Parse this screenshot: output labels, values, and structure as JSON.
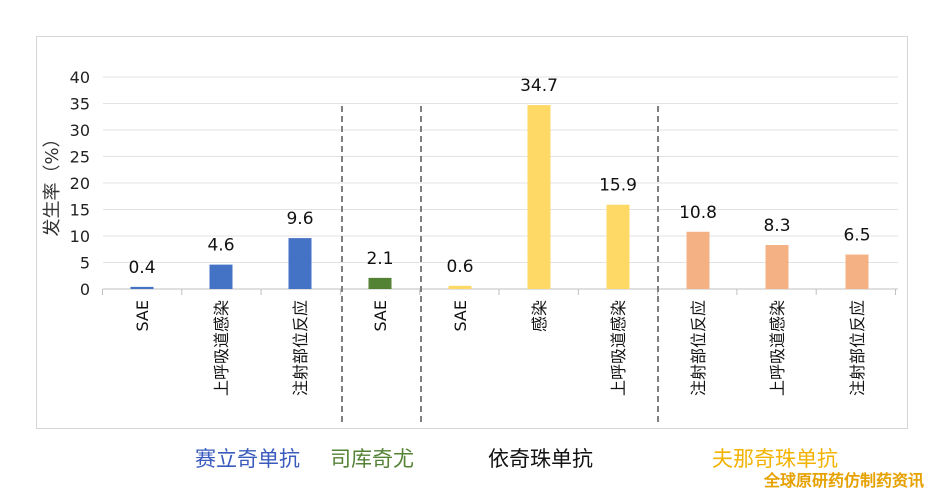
{
  "chart_data": {
    "type": "bar",
    "ylabel": "发生率（%）",
    "ylim": [
      0,
      40
    ],
    "yticks": [
      0,
      5,
      10,
      15,
      20,
      25,
      30,
      35,
      40
    ],
    "grid": true,
    "groups": [
      {
        "name": "赛立奇单抗",
        "color": "#3a5bbd",
        "bar_color": "#4472c4",
        "categories": [
          "SAE",
          "上呼吸道感染",
          "注射部位反应"
        ],
        "values": [
          0.4,
          4.6,
          9.6
        ]
      },
      {
        "name": "司库奇尤",
        "color": "#548235",
        "bar_color": "#548235",
        "categories": [
          "SAE"
        ],
        "values": [
          2.1
        ]
      },
      {
        "name": "依奇珠单抗",
        "color": "#111111",
        "bar_color": "#ffd966",
        "categories": [
          "SAE",
          "感染",
          "上呼吸道感染"
        ],
        "values": [
          0.6,
          34.7,
          15.9
        ]
      },
      {
        "name": "夫那奇珠单抗",
        "color": "#f2b200",
        "bar_color": "#f4b183",
        "categories": [
          "注射部位反应",
          "上呼吸道感染",
          "注射部位反应"
        ],
        "values": [
          10.8,
          8.3,
          6.5
        ]
      }
    ]
  },
  "watermark": "全球原研药仿制药资讯"
}
